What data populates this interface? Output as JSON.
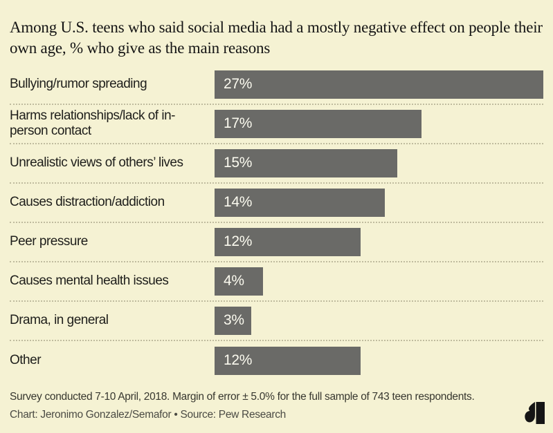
{
  "title": "Among U.S. teens who said social media had a mostly negative effect on people their own age, % who give as the main reasons",
  "chart_data": {
    "type": "bar",
    "orientation": "horizontal",
    "title": "Among U.S. teens who said social media had a mostly negative effect on people their own age, % who give as the main reasons",
    "categories": [
      "Bullying/rumor spreading",
      "Harms relationships/lack of in-person contact",
      "Unrealistic views of others’ lives",
      "Causes distraction/addiction",
      "Peer pressure",
      "Causes mental health issues",
      "Drama, in general",
      "Other"
    ],
    "values": [
      27,
      17,
      15,
      14,
      12,
      4,
      3,
      12
    ],
    "value_labels": [
      "27%",
      "17%",
      "15%",
      "14%",
      "12%",
      "4%",
      "3%",
      "12%"
    ],
    "unit": "%",
    "xlim": [
      0,
      27
    ],
    "grid": false,
    "legend": false,
    "bar_color": "#6a6a67",
    "background_color": "#f5f2d3",
    "separator_style": "dotted"
  },
  "footer": {
    "note": "Survey conducted 7-10 April, 2018. Margin of error ± 5.0% for the full sample of 743 teen respondents.",
    "credit": "Chart: Jeronimo Gonzalez/Semafor • Source: Pew Research"
  },
  "branding": {
    "logo_name": "semafor-logo",
    "logo_color": "#151515"
  }
}
